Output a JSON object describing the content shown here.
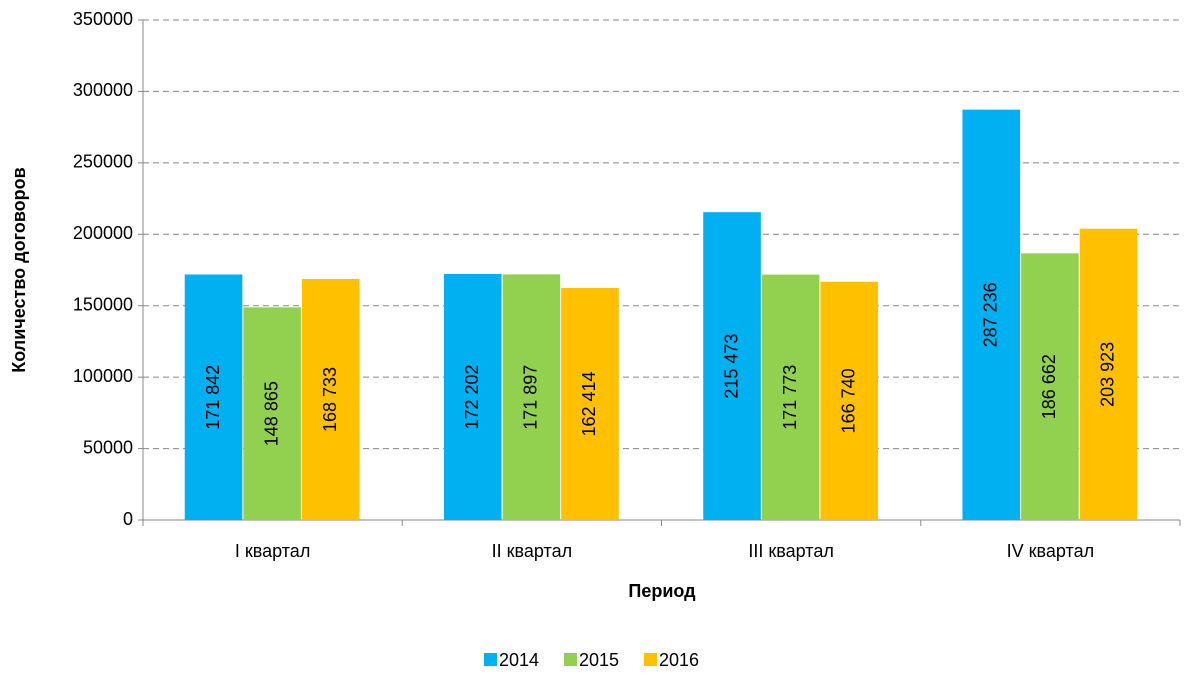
{
  "chart_data": {
    "type": "bar",
    "categories": [
      "I квартал",
      "II квартал",
      "III квартал",
      "IV квартал"
    ],
    "series": [
      {
        "name": "2014",
        "color": "#00b0f0",
        "values": [
          171842,
          172202,
          215473,
          287236
        ],
        "value_labels": [
          "171 842",
          "172 202",
          "215 473",
          "287 236"
        ]
      },
      {
        "name": "2015",
        "color": "#92d050",
        "values": [
          148865,
          171897,
          171773,
          186662
        ],
        "value_labels": [
          "148 865",
          "171 897",
          "171 773",
          "186 662"
        ]
      },
      {
        "name": "2016",
        "color": "#ffc000",
        "values": [
          168733,
          162414,
          166740,
          203923
        ],
        "value_labels": [
          "168 733",
          "162 414",
          "166 740",
          "203 923"
        ]
      }
    ],
    "x_label": "Период",
    "y_label": "Количество договоров",
    "ylim": [
      0,
      350000
    ],
    "yticks": [
      0,
      50000,
      100000,
      150000,
      200000,
      250000,
      300000,
      350000
    ],
    "grid": true,
    "legend": "bottom"
  }
}
